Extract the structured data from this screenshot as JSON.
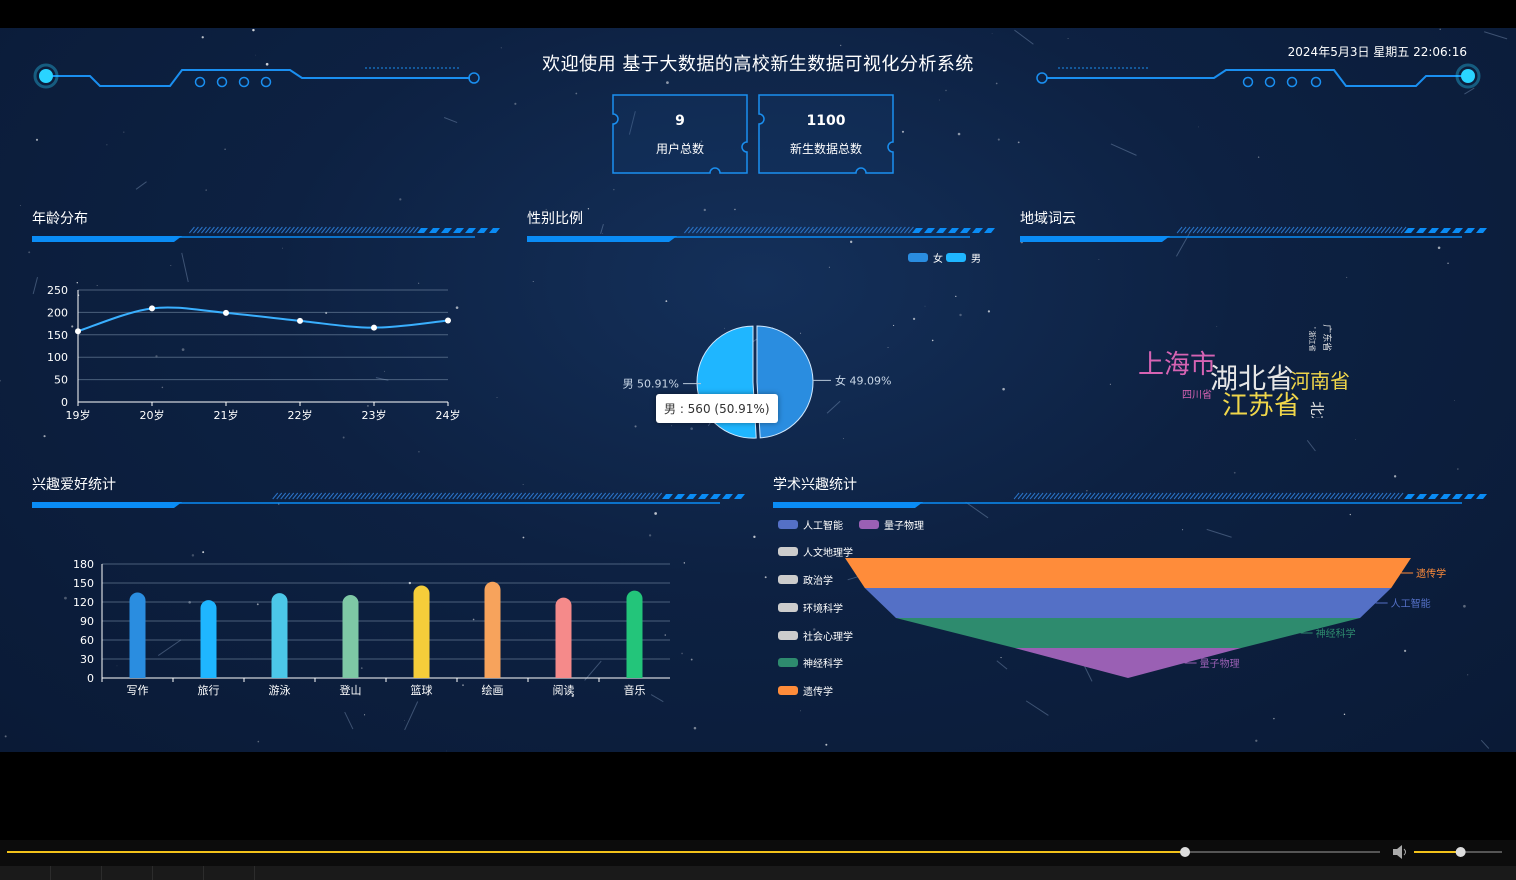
{
  "header": {
    "title": "欢迎使用 基于大数据的高校新生数据可视化分析系统",
    "datetime": "2024年5月3日 星期五 22:06:16"
  },
  "stats": [
    {
      "value": "9",
      "label": "用户总数"
    },
    {
      "value": "1100",
      "label": "新生数据总数"
    }
  ],
  "panels": {
    "age": "年龄分布",
    "gender": "性别比例",
    "region": "地域词云",
    "hobby": "兴趣爱好统计",
    "academic": "学术兴趣统计"
  },
  "colors": {
    "accent": "#0a8cf5",
    "line": "#3ab0ff",
    "female": "#2a8de0",
    "male": "#1fb6ff"
  },
  "icons": [
    "volume-icon"
  ],
  "chart_data": [
    {
      "id": "age",
      "type": "line",
      "categories": [
        "19岁",
        "20岁",
        "21岁",
        "22岁",
        "23岁",
        "24岁"
      ],
      "values": [
        158,
        209,
        199,
        181,
        166,
        182
      ],
      "ylim": [
        0,
        250
      ],
      "yticks": [
        "0",
        "50",
        "100",
        "150",
        "200",
        "250"
      ],
      "grid": true
    },
    {
      "id": "gender",
      "type": "pie",
      "legend": [
        "女",
        "男"
      ],
      "legend_position": "top-right",
      "slices": [
        {
          "name": "女",
          "value": 540,
          "label": "女 49.09%",
          "color": "#2a8de0"
        },
        {
          "name": "男",
          "value": 560,
          "label": "男 50.91%",
          "color": "#1fb6ff"
        }
      ],
      "tooltip": "男 : 560 (50.91%)"
    },
    {
      "id": "region",
      "type": "wordcloud",
      "words": [
        {
          "text": "上海市",
          "color": "#d663b3"
        },
        {
          "text": "湖北省",
          "color": "#e6e6e6"
        },
        {
          "text": "河南省",
          "color": "#f0d64a"
        },
        {
          "text": "江苏省",
          "color": "#f0d64a"
        },
        {
          "text": "四川省",
          "color": "#d663b3"
        },
        {
          "text": "北京市",
          "color": "#e6e6e6"
        },
        {
          "text": "广东省",
          "color": "#e6e6e6"
        },
        {
          "text": "浙江省",
          "color": "#e6e6e6"
        }
      ]
    },
    {
      "id": "hobby",
      "type": "bar",
      "categories": [
        "写作",
        "旅行",
        "游泳",
        "登山",
        "篮球",
        "绘画",
        "阅读",
        "音乐"
      ],
      "values": [
        135,
        123,
        134,
        131,
        146,
        152,
        127,
        138
      ],
      "colors": [
        "#2a8de0",
        "#1fb6ff",
        "#4cc7e8",
        "#7ec8a5",
        "#f5cd3a",
        "#f7a35c",
        "#f58a8a",
        "#23c57a"
      ],
      "ylim": [
        0,
        180
      ],
      "yticks": [
        "0",
        "30",
        "60",
        "90",
        "120",
        "150",
        "180"
      ],
      "grid": true
    },
    {
      "id": "academic",
      "type": "funnel",
      "legend": [
        {
          "name": "人工智能",
          "color": "#5470c6"
        },
        {
          "name": "量子物理",
          "color": "#9a60b4"
        },
        {
          "name": "人文地理学",
          "color": "#cccccc"
        },
        {
          "name": "政治学",
          "color": "#cccccc"
        },
        {
          "name": "环境科学",
          "color": "#cccccc"
        },
        {
          "name": "社会心理学",
          "color": "#cccccc"
        },
        {
          "name": "神经科学",
          "color": "#2e8b6e"
        },
        {
          "name": "遗传学",
          "color": "#ff8c3a"
        }
      ],
      "legend_position": "left",
      "stages": [
        {
          "name": "遗传学",
          "value": 100,
          "color": "#ff8c3a"
        },
        {
          "name": "人工智能",
          "value": 93,
          "color": "#5470c6"
        },
        {
          "name": "神经科学",
          "value": 82,
          "color": "#2e8b6e"
        },
        {
          "name": "量子物理",
          "value": 40,
          "color": "#9a60b4"
        }
      ]
    }
  ],
  "player": {
    "progress": 0.858,
    "volume": 0.53
  }
}
